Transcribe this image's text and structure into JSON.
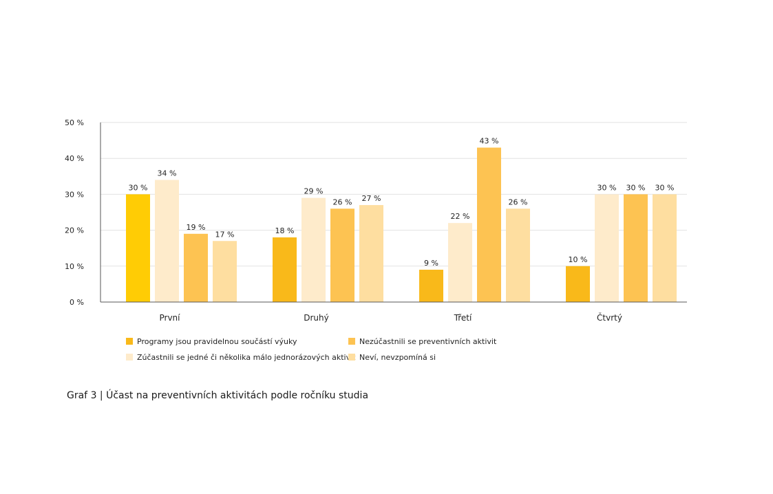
{
  "chart_data": {
    "type": "bar",
    "categories": [
      "První",
      "Druhý",
      "Třetí",
      "Čtvrtý"
    ],
    "series": [
      {
        "name": "Programy jsou pravidelnou součástí výuky",
        "values": [
          30,
          18,
          9,
          10
        ],
        "color": "#F9B91A"
      },
      {
        "name": "Zúčastnili se jedné či několika málo jednorázových aktivit",
        "values": [
          34,
          29,
          22,
          30
        ],
        "color": "#FEEBCB"
      },
      {
        "name": "Nezúčastnili se preventivních aktivit",
        "values": [
          19,
          26,
          43,
          30
        ],
        "color": "#FDC352"
      },
      {
        "name": "Neví, nevzpomíná si",
        "values": [
          17,
          27,
          26,
          30
        ],
        "color": "#FEDEA0"
      }
    ],
    "first_bar_color": "#FFCC05",
    "value_labels": [
      [
        "30 %",
        "18 %",
        "9 %",
        "10 %"
      ],
      [
        "34 %",
        "29 %",
        "22 %",
        "30 %"
      ],
      [
        "19 %",
        "26 %",
        "43 %",
        "30 %"
      ],
      [
        "17 %",
        "27 %",
        "26 %",
        "30 %"
      ]
    ],
    "y_ticks": [
      0,
      10,
      20,
      30,
      40,
      50
    ],
    "y_tick_labels": [
      "0 %",
      "10 %",
      "20 %",
      "30 %",
      "40 %",
      "50 %"
    ],
    "ylim": [
      0,
      50
    ],
    "grid": true,
    "legend_position": "bottom",
    "xlabel": "",
    "ylabel": ""
  },
  "legend": {
    "items": [
      {
        "label": "Programy jsou pravidelnou součástí výuky",
        "color": "#F9B91A"
      },
      {
        "label": "Nezúčastnili se preventivních aktivit",
        "color": "#FDC352"
      },
      {
        "label": "Zúčastnili se jedné či několika málo jednorázových aktivit",
        "color": "#FEEBCB"
      },
      {
        "label": "Neví, nevzpomíná si",
        "color": "#FEDEA0"
      }
    ]
  },
  "caption": "Graf 3 | Účast na preventivních aktivitách podle ročníku studia"
}
